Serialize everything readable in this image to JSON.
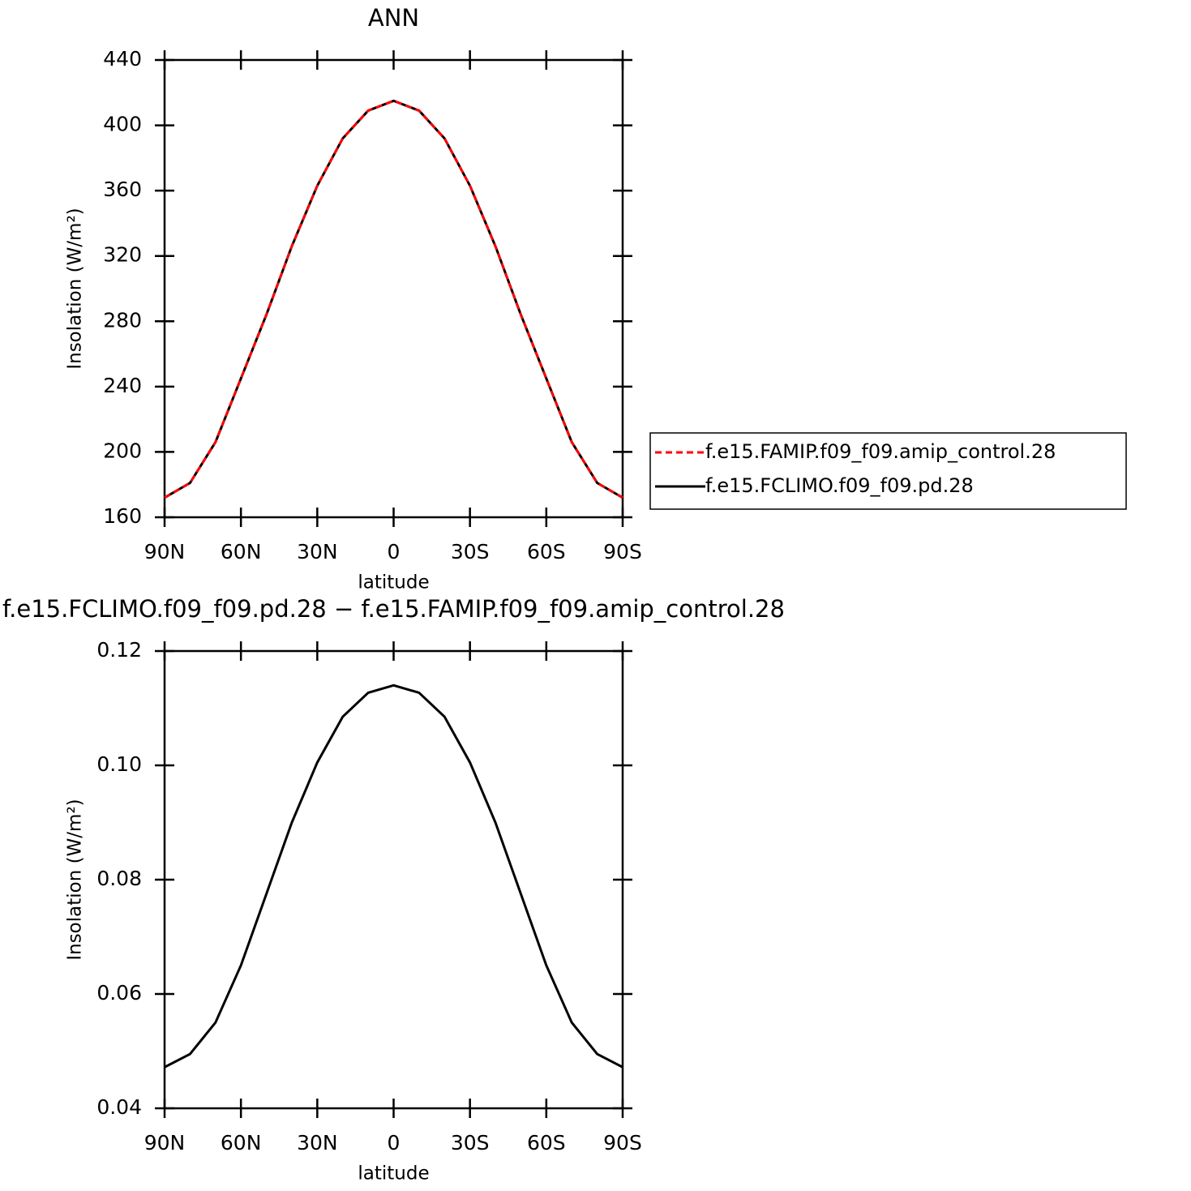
{
  "chart_data": [
    {
      "type": "line",
      "title": "ANN",
      "xlabel": "latitude",
      "ylabel": "Insolation (W/m²)",
      "x": [
        90,
        80,
        70,
        60,
        50,
        40,
        30,
        20,
        10,
        0,
        -10,
        -20,
        -30,
        -40,
        -50,
        -60,
        -70,
        -80,
        -90
      ],
      "series": [
        {
          "name": "f.e15.FAMIP.f09_f09.amip_control.28",
          "color": "#ff0000",
          "linestyle": "dashed",
          "values": [
            172,
            181,
            206,
            245,
            284,
            326,
            363,
            392,
            409,
            415,
            409,
            392,
            363,
            326,
            284,
            245,
            206,
            181,
            172
          ]
        },
        {
          "name": "f.e15.FCLIMO.f09_f09.pd.28",
          "color": "#000000",
          "linestyle": "solid",
          "values": [
            172,
            181,
            206,
            245,
            284,
            326,
            363,
            392,
            409,
            415,
            409,
            392,
            363,
            326,
            284,
            245,
            206,
            181,
            172
          ]
        }
      ],
      "xlim": [
        90,
        -90
      ],
      "xticks": [
        {
          "value": 90,
          "label": "90N"
        },
        {
          "value": 60,
          "label": "60N"
        },
        {
          "value": 30,
          "label": "30N"
        },
        0,
        {
          "value": -30,
          "label": "30S"
        },
        {
          "value": -60,
          "label": "60S"
        },
        {
          "value": -90,
          "label": "90S"
        }
      ],
      "ylim": [
        160,
        440
      ],
      "yticks": [
        160,
        200,
        240,
        280,
        320,
        360,
        400,
        440
      ],
      "legend": "right"
    },
    {
      "type": "line",
      "title": "f.e15.FCLIMO.f09_f09.pd.28 − f.e15.FAMIP.f09_f09.amip_control.28",
      "xlabel": "latitude",
      "ylabel": "Insolation (W/m²)",
      "x": [
        90,
        80,
        70,
        60,
        50,
        40,
        30,
        20,
        10,
        0,
        -10,
        -20,
        -30,
        -40,
        -50,
        -60,
        -70,
        -80,
        -90
      ],
      "series": [
        {
          "color": "#000000",
          "linestyle": "solid",
          "values": [
            0.0472,
            0.0495,
            0.055,
            0.065,
            0.0775,
            0.09,
            0.1005,
            0.1085,
            0.1127,
            0.114,
            0.1127,
            0.1085,
            0.1005,
            0.09,
            0.0775,
            0.065,
            0.055,
            0.0495,
            0.0472
          ]
        }
      ],
      "xlim": [
        90,
        -90
      ],
      "xticks": [
        {
          "value": 90,
          "label": "90N"
        },
        {
          "value": 60,
          "label": "60N"
        },
        {
          "value": 30,
          "label": "30N"
        },
        0,
        {
          "value": -30,
          "label": "30S"
        },
        {
          "value": -60,
          "label": "60S"
        },
        {
          "value": -90,
          "label": "90S"
        }
      ],
      "ylim": [
        0.04,
        0.12
      ],
      "yticks": [
        0.04,
        0.06,
        0.08,
        {
          "value": 0.1,
          "label": "0.10"
        },
        0.12
      ]
    }
  ]
}
